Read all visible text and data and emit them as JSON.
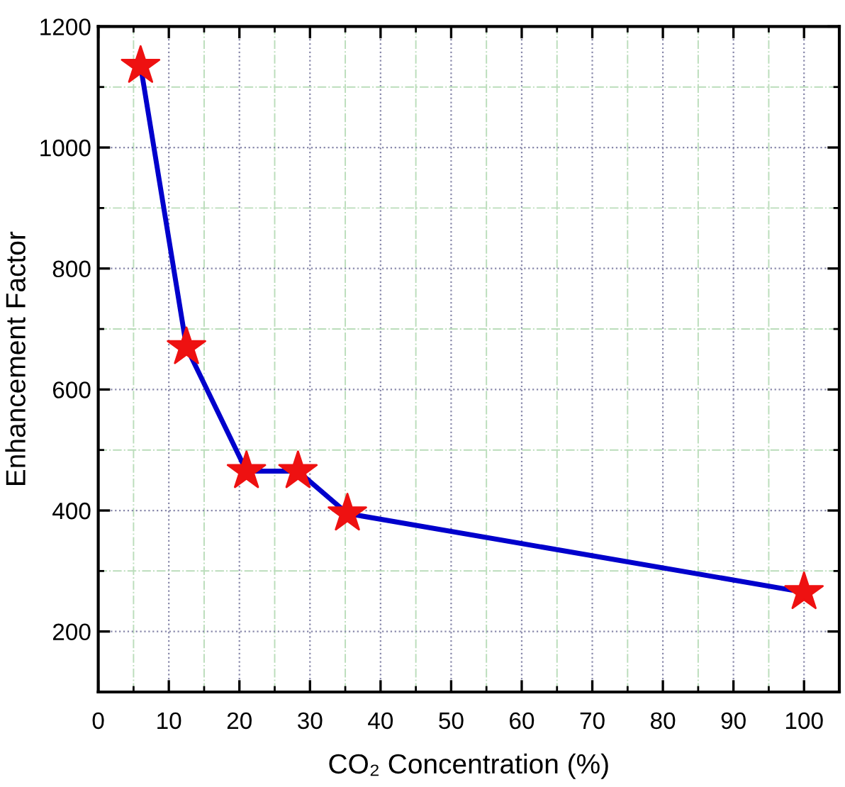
{
  "chart_data": {
    "type": "line",
    "xlabel": "CO₂ Concentration (%)",
    "ylabel": "Enhancement Factor",
    "x": [
      6,
      12.5,
      21,
      28.3,
      35.3,
      100
    ],
    "series": [
      {
        "color": "#0000cc",
        "colors": [
          "#ee1111",
          "#ee1111",
          "#ee1111",
          "#ee1111",
          "#ee1111",
          "#ee1111"
        ],
        "values": [
          1135,
          670,
          465,
          465,
          395,
          265
        ]
      }
    ],
    "marker": "star",
    "line_style": "solid",
    "xlim": [
      0,
      105
    ],
    "xticks": [
      0,
      10,
      20,
      30,
      40,
      50,
      60,
      70,
      80,
      90,
      100
    ],
    "ylim": [
      100,
      1200
    ],
    "yticks": [
      200,
      400,
      600,
      800,
      1000,
      1200
    ],
    "grid": true
  }
}
